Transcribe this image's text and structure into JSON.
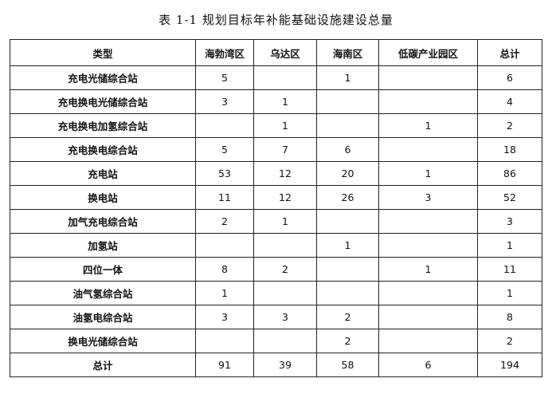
{
  "title": "表 1-1 规划目标年补能基础设施建设总量",
  "columns": [
    "类型",
    "海勃湾区",
    "乌达区",
    "海南区",
    "低碳产业园区",
    "总计"
  ],
  "rows": [
    [
      "充电光储综合站",
      "5",
      "",
      "1",
      "",
      "6"
    ],
    [
      "充电换电光储综合站",
      "3",
      "1",
      "",
      "",
      "4"
    ],
    [
      "充电换电加氢综合站",
      "",
      "1",
      "",
      "1",
      "2"
    ],
    [
      "充电换电综合站",
      "5",
      "7",
      "6",
      "",
      "18"
    ],
    [
      "充电站",
      "53",
      "12",
      "20",
      "1",
      "86"
    ],
    [
      "换电站",
      "11",
      "12",
      "26",
      "3",
      "52"
    ],
    [
      "加气充电综合站",
      "2",
      "1",
      "",
      "",
      "3"
    ],
    [
      "加氢站",
      "",
      "",
      "1",
      "",
      "1"
    ],
    [
      "四位一体",
      "8",
      "2",
      "",
      "1",
      "11"
    ],
    [
      "油气氢综合站",
      "1",
      "",
      "",
      "",
      "1"
    ],
    [
      "油氢电综合站",
      "3",
      "3",
      "2",
      "",
      "8"
    ],
    [
      "换电光储综合站",
      "",
      "",
      "2",
      "",
      "2"
    ],
    [
      "总计",
      "91",
      "39",
      "58",
      "6",
      "194"
    ]
  ]
}
